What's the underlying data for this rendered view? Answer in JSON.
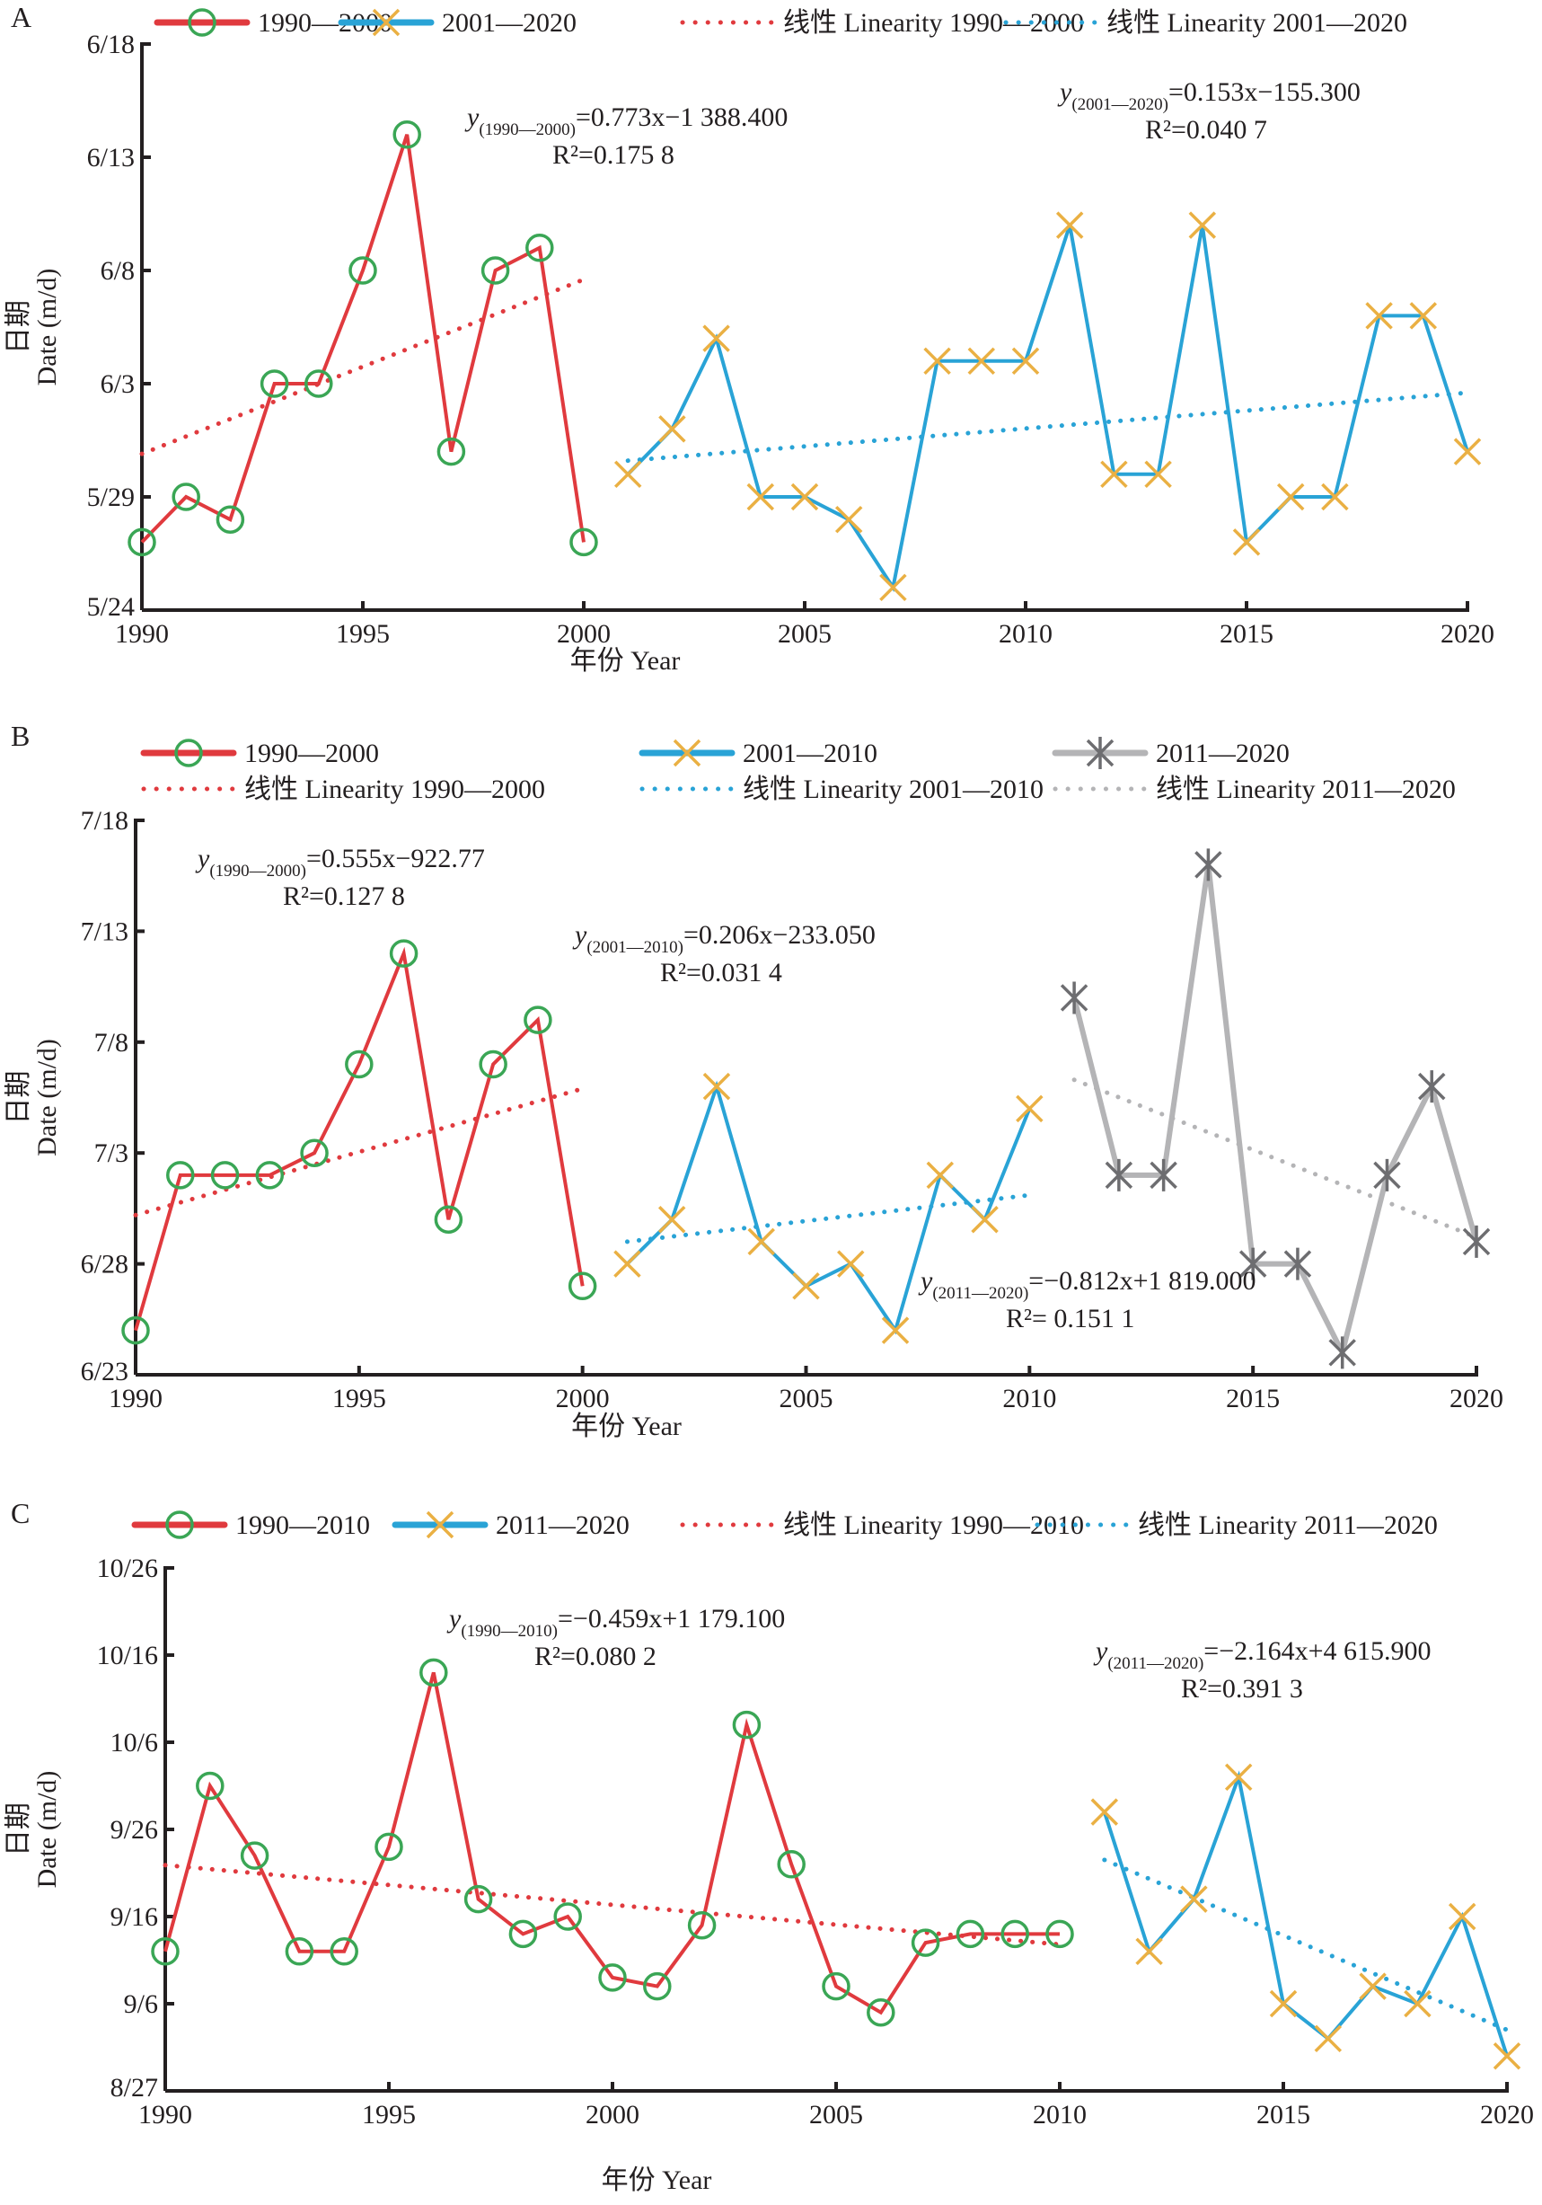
{
  "chart_data": [
    {
      "panel": "A",
      "type": "line",
      "xlabel": "年份 Year",
      "ylabel_cn": "日期",
      "ylabel_en": "Date (m/d)",
      "xlim": [
        1990,
        2020
      ],
      "x_ticks": [
        "1990",
        "1995",
        "2000",
        "2005",
        "2010",
        "2015",
        "2020"
      ],
      "y_ticks": [
        "5/24",
        "5/29",
        "6/3",
        "6/8",
        "6/13",
        "6/18"
      ],
      "y_base_date": "5/24",
      "y_range_days": [
        0,
        25
      ],
      "legend": {
        "position": "top",
        "items": [
          {
            "label": "1990—2000",
            "style": "series",
            "series": 0
          },
          {
            "label": "2001—2020",
            "style": "series",
            "series": 1
          },
          {
            "label": "线性 Linearity 1990—2000",
            "style": "trend",
            "series": 0
          },
          {
            "label": "线性 Linearity 2001—2020",
            "style": "trend",
            "series": 1
          }
        ]
      },
      "series": [
        {
          "name": "1990—2000",
          "line_color": "#e03a3e",
          "marker": "circle",
          "marker_color": "#3aa655",
          "x": [
            1990,
            1991,
            1992,
            1993,
            1994,
            1995,
            1996,
            1997,
            1998,
            1999,
            2000
          ],
          "dates": [
            "5/27",
            "5/29",
            "5/28",
            "6/3",
            "6/3",
            "6/8",
            "6/14",
            "5/31",
            "6/8",
            "6/9",
            "5/27"
          ],
          "days_after_base": [
            3,
            5,
            4,
            10,
            10,
            15,
            21,
            7,
            15,
            16,
            3
          ],
          "trend": {
            "color": "#e03a3e",
            "x0": 1990,
            "x1": 2000,
            "y0_days": 6.9,
            "y1_days": 14.6
          }
        },
        {
          "name": "2001—2020",
          "line_color": "#29a3d6",
          "marker": "x",
          "marker_color": "#eab043",
          "x": [
            2001,
            2002,
            2003,
            2004,
            2005,
            2006,
            2007,
            2008,
            2009,
            2010,
            2011,
            2012,
            2013,
            2014,
            2015,
            2016,
            2017,
            2018,
            2019,
            2020
          ],
          "dates": [
            "5/30",
            "6/1",
            "6/5",
            "5/29",
            "5/29",
            "5/28",
            "5/25",
            "6/4",
            "6/4",
            "6/4",
            "6/10",
            "5/30",
            "5/30",
            "6/10",
            "5/27",
            "5/29",
            "5/29",
            "6/6",
            "6/6",
            "5/31"
          ],
          "days_after_base": [
            6,
            8,
            12,
            5,
            5,
            4,
            1,
            11,
            11,
            11,
            17,
            6,
            6,
            17,
            3,
            5,
            5,
            13,
            13,
            7
          ],
          "trend": {
            "color": "#29a3d6",
            "x0": 2001,
            "x1": 2020,
            "y0_days": 6.6,
            "y1_days": 9.6
          }
        }
      ],
      "annotations": [
        {
          "y": "y",
          "sub": "(1990—2000)",
          "eq": "=0.773x−1 388.400",
          "r2": "R²=0.175 8"
        },
        {
          "y": "y",
          "sub": "(2001—2020)",
          "eq": "=0.153x−155.300",
          "r2": "R²=0.040 7"
        }
      ]
    },
    {
      "panel": "B",
      "type": "line",
      "xlabel": "年份 Year",
      "ylabel_cn": "日期",
      "ylabel_en": "Date (m/d)",
      "xlim": [
        1990,
        2020
      ],
      "x_ticks": [
        "1990",
        "1995",
        "2000",
        "2005",
        "2010",
        "2015",
        "2020"
      ],
      "y_ticks": [
        "6/23",
        "6/28",
        "7/3",
        "7/8",
        "7/13",
        "7/18"
      ],
      "y_base_date": "6/23",
      "y_range_days": [
        0,
        25
      ],
      "legend": {
        "position": "top",
        "items": [
          {
            "label": "1990—2000",
            "style": "series",
            "series": 0
          },
          {
            "label": "2001—2010",
            "style": "series",
            "series": 1
          },
          {
            "label": "2011—2020",
            "style": "series",
            "series": 2
          },
          {
            "label": "线性 Linearity 1990—2000",
            "style": "trend",
            "series": 0
          },
          {
            "label": "线性 Linearity 2001—2010",
            "style": "trend",
            "series": 1
          },
          {
            "label": "线性 Linearity 2011—2020",
            "style": "trend",
            "series": 2
          }
        ]
      },
      "series": [
        {
          "name": "1990—2000",
          "line_color": "#e03a3e",
          "marker": "circle",
          "marker_color": "#3aa655",
          "x": [
            1990,
            1991,
            1992,
            1993,
            1994,
            1995,
            1996,
            1997,
            1998,
            1999,
            2000
          ],
          "dates": [
            "6/25",
            "7/2",
            "7/2",
            "7/2",
            "7/3",
            "7/7",
            "7/12",
            "6/30",
            "7/7",
            "7/9",
            "6/27"
          ],
          "days_after_base": [
            2,
            9,
            9,
            9,
            10,
            14,
            19,
            7,
            14,
            16,
            4
          ],
          "trend": {
            "color": "#e03a3e",
            "x0": 1990,
            "x1": 2000,
            "y0_days": 7.2,
            "y1_days": 12.9
          }
        },
        {
          "name": "2001—2010",
          "line_color": "#29a3d6",
          "marker": "x",
          "marker_color": "#eab043",
          "x": [
            2001,
            2002,
            2003,
            2004,
            2005,
            2006,
            2007,
            2008,
            2009,
            2010
          ],
          "dates": [
            "6/28",
            "6/30",
            "7/6",
            "6/29",
            "6/27",
            "6/28",
            "6/25",
            "7/2",
            "6/30",
            "7/5"
          ],
          "days_after_base": [
            5,
            7,
            13,
            6,
            4,
            5,
            2,
            9,
            7,
            12
          ],
          "trend": {
            "color": "#29a3d6",
            "x0": 2001,
            "x1": 2010,
            "y0_days": 6.0,
            "y1_days": 8.1
          }
        },
        {
          "name": "2011—2020",
          "line_color": "#b4b4b6",
          "marker": "asterisk",
          "marker_color": "#6d6d70",
          "x": [
            2011,
            2012,
            2013,
            2014,
            2015,
            2016,
            2017,
            2018,
            2019,
            2020
          ],
          "dates": [
            "7/10",
            "7/2",
            "7/2",
            "7/16",
            "6/28",
            "6/28",
            "6/24",
            "7/2",
            "7/6",
            "6/29"
          ],
          "days_after_base": [
            17,
            9,
            9,
            23,
            5,
            5,
            1,
            9,
            13,
            6
          ],
          "trend": {
            "color": "#b4b4b6",
            "x0": 2011,
            "x1": 2020,
            "y0_days": 13.3,
            "y1_days": 6.2
          }
        }
      ],
      "annotations": [
        {
          "y": "y",
          "sub": "(1990—2000)",
          "eq": "=0.555x−922.77",
          "r2": "R²=0.127 8"
        },
        {
          "y": "y",
          "sub": "(2001—2010)",
          "eq": "=0.206x−233.050",
          "r2": "R²=0.031 4"
        },
        {
          "y": "y",
          "sub": "(2011—2020)",
          "eq": "=−0.812x+1 819.000",
          "r2": "R²= 0.151 1"
        }
      ]
    },
    {
      "panel": "C",
      "type": "line",
      "xlabel": "年份 Year",
      "ylabel_cn": "日期",
      "ylabel_en": "Date (m/d)",
      "xlim": [
        1990,
        2020
      ],
      "x_ticks": [
        "1990",
        "1995",
        "2000",
        "2005",
        "2010",
        "2015",
        "2020"
      ],
      "y_ticks": [
        "8/27",
        "9/6",
        "9/16",
        "9/26",
        "10/6",
        "10/16",
        "10/26"
      ],
      "y_base_date": "8/27",
      "y_range_days": [
        0,
        60
      ],
      "legend": {
        "position": "top",
        "items": [
          {
            "label": "1990—2010",
            "style": "series",
            "series": 0
          },
          {
            "label": "2011—2020",
            "style": "series",
            "series": 1
          },
          {
            "label": "线性 Linearity 1990—2010",
            "style": "trend",
            "series": 0
          },
          {
            "label": "线性 Linearity 2011—2020",
            "style": "trend",
            "series": 1
          }
        ]
      },
      "series": [
        {
          "name": "1990—2010",
          "line_color": "#e03a3e",
          "marker": "circle",
          "marker_color": "#3aa655",
          "x": [
            1990,
            1991,
            1992,
            1993,
            1994,
            1995,
            1996,
            1997,
            1998,
            1999,
            2000,
            2001,
            2002,
            2003,
            2004,
            2005,
            2006,
            2007,
            2008,
            2009,
            2010
          ],
          "dates": [
            "9/12",
            "10/1",
            "9/23",
            "9/12",
            "9/12",
            "9/24",
            "10/14",
            "9/18",
            "9/14",
            "9/16",
            "9/9",
            "9/8",
            "9/15",
            "10/8",
            "9/22",
            "9/8",
            "9/5",
            "9/13",
            "9/14",
            "9/14",
            "9/14"
          ],
          "days_after_base": [
            16,
            35,
            27,
            16,
            16,
            28,
            48,
            22,
            18,
            20,
            13,
            12,
            19,
            42,
            26,
            12,
            9,
            17,
            18,
            18,
            18
          ],
          "trend": {
            "color": "#e03a3e",
            "x0": 1990,
            "x1": 2010,
            "y0_days": 25.9,
            "y1_days": 16.8
          }
        },
        {
          "name": "2011—2020",
          "line_color": "#29a3d6",
          "marker": "x",
          "marker_color": "#eab043",
          "x": [
            2011,
            2012,
            2013,
            2014,
            2015,
            2016,
            2017,
            2018,
            2019,
            2020
          ],
          "dates": [
            "9/28",
            "9/12",
            "9/18",
            "10/2",
            "9/6",
            "9/2",
            "9/8",
            "9/6",
            "9/16",
            "8/31"
          ],
          "days_after_base": [
            32,
            16,
            22,
            36,
            10,
            6,
            12,
            10,
            20,
            4
          ],
          "trend": {
            "color": "#29a3d6",
            "x0": 2011,
            "x1": 2020,
            "y0_days": 26.5,
            "y1_days": 7.0
          }
        }
      ],
      "annotations": [
        {
          "y": "y",
          "sub": "(1990—2010)",
          "eq": "=−0.459x+1 179.100",
          "r2": "R²=0.080 2"
        },
        {
          "y": "y",
          "sub": "(2011—2020)",
          "eq": "=−2.164x+4 615.900",
          "r2": "R²=0.391 3"
        }
      ]
    }
  ]
}
